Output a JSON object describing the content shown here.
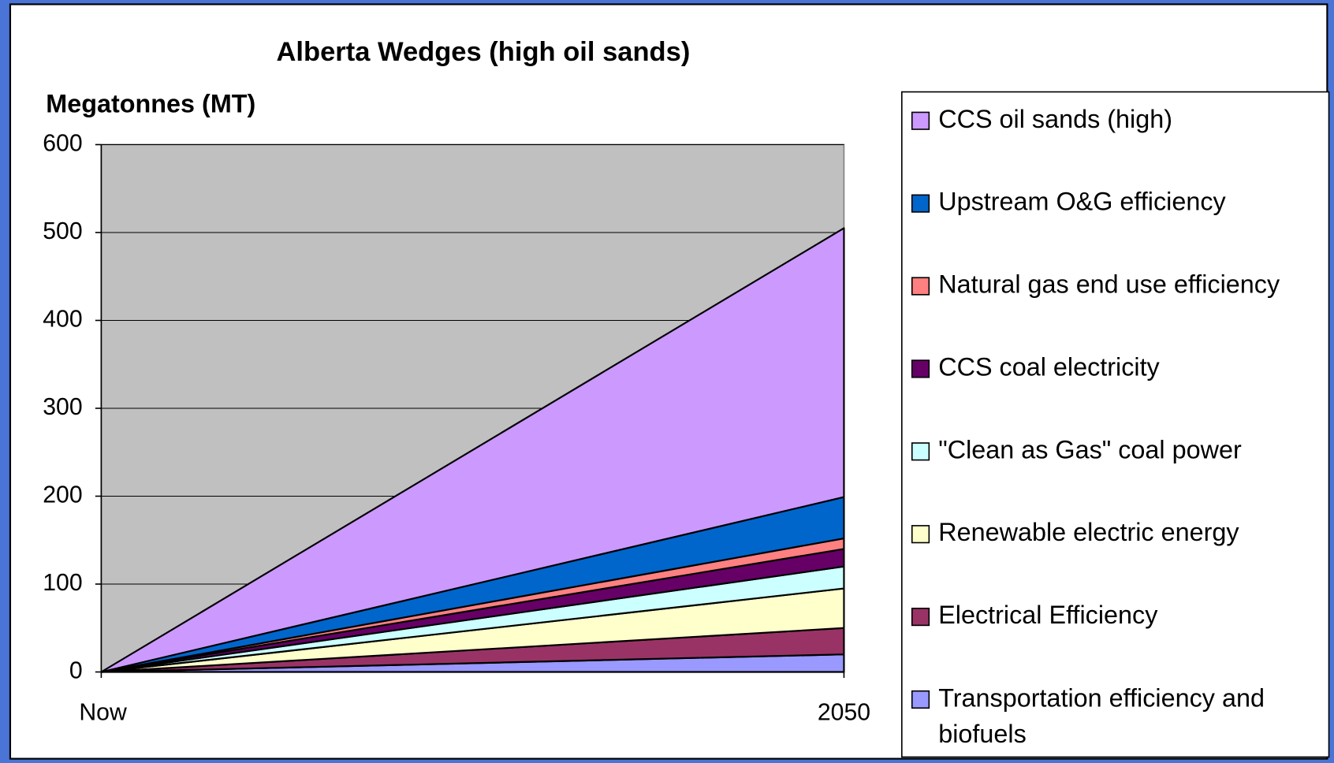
{
  "chart_data": {
    "type": "stacked_area",
    "title": "Alberta Wedges (high oil sands)",
    "y_label": "Megatonnes (MT)",
    "categories": [
      "Now",
      "2050"
    ],
    "ylim": [
      0,
      600
    ],
    "yticks": [
      0,
      100,
      200,
      300,
      400,
      500,
      600
    ],
    "grid": true,
    "plot_background": "#c0c0c0",
    "legend": "right",
    "series": [
      {
        "name": "Transportation efficiency and biofuels",
        "color": "#9999ff",
        "values": [
          0,
          20
        ]
      },
      {
        "name": "Electrical Efficiency",
        "color": "#993366",
        "values": [
          0,
          30
        ]
      },
      {
        "name": "Renewable electric energy",
        "color": "#ffffcc",
        "values": [
          0,
          45
        ]
      },
      {
        "name": "\"Clean as Gas\" coal power",
        "color": "#ccffff",
        "values": [
          0,
          25
        ]
      },
      {
        "name": "CCS coal electricity",
        "color": "#660066",
        "values": [
          0,
          20
        ]
      },
      {
        "name": "Natural gas end use efficiency",
        "color": "#ff8080",
        "values": [
          0,
          12
        ]
      },
      {
        "name": "Upstream O&G efficiency",
        "color": "#0066cc",
        "values": [
          0,
          47
        ]
      },
      {
        "name": "CCS oil sands (high)",
        "color": "#cc99ff",
        "values": [
          0,
          306
        ]
      }
    ]
  }
}
